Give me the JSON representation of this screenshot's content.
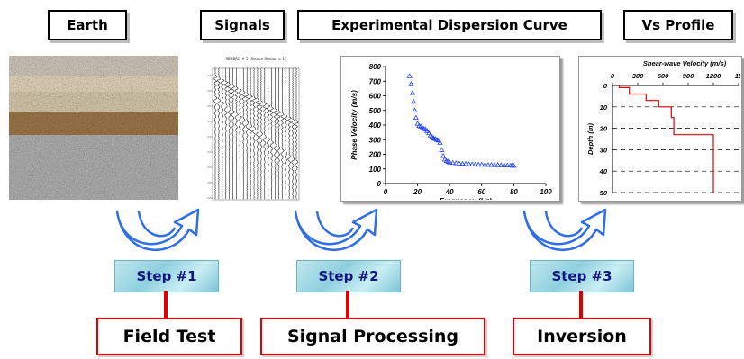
{
  "titles": {
    "earth": "Earth",
    "signals": "Signals",
    "dispersion": "Experimental Dispersion Curve",
    "vs": "Vs Profile"
  },
  "steps": [
    "Step #1",
    "Step #2",
    "Step #3"
  ],
  "processes": [
    "Field Test",
    "Signal Processing",
    "Inversion"
  ],
  "signals_header": "SEGBRD # 5 (Source Station = 1)",
  "colors": {
    "dispersion_marker": "#2040ff",
    "profile_line": "#e00000",
    "connector": "#e00000"
  },
  "chart_data": [
    {
      "type": "scatter",
      "title": "",
      "xlabel": "Frequency (Hz)",
      "ylabel": "Phase Velocity (m/s)",
      "xlim": [
        0,
        100
      ],
      "ylim": [
        0,
        800
      ],
      "xticks": [
        "0",
        "20",
        "40",
        "60",
        "80",
        "100"
      ],
      "yticks": [
        "0",
        "100",
        "200",
        "300",
        "400",
        "500",
        "600",
        "700",
        "800"
      ],
      "marker": "open-triangle",
      "x": [
        15,
        16,
        16.8,
        17.5,
        18.2,
        19,
        20,
        21,
        22,
        23,
        24,
        25,
        26,
        27,
        28,
        29,
        30,
        31,
        32,
        33,
        34,
        35,
        36,
        37,
        38,
        39,
        40,
        42,
        44,
        46,
        48,
        50,
        52,
        54,
        56,
        58,
        60,
        62,
        64,
        66,
        68,
        70,
        72,
        74,
        76,
        78,
        79,
        80
      ],
      "y": [
        735,
        680,
        620,
        560,
        500,
        450,
        410,
        395,
        390,
        380,
        375,
        370,
        360,
        345,
        330,
        320,
        310,
        305,
        300,
        295,
        280,
        230,
        190,
        165,
        155,
        150,
        145,
        142,
        140,
        138,
        136,
        135,
        133,
        132,
        131,
        130,
        130,
        129,
        128,
        128,
        127,
        127,
        126,
        125,
        125,
        124,
        123,
        122
      ]
    },
    {
      "type": "line",
      "title": "Shear-wave Velocity (m/s)",
      "xlabel": "Shear-wave Velocity (m/s)",
      "ylabel": "Depth (m)",
      "xlim": [
        0,
        1500
      ],
      "ylim": [
        0,
        50
      ],
      "xticks": [
        "0",
        "300",
        "600",
        "900",
        "1200",
        "15"
      ],
      "yticks": [
        "0",
        "10",
        "20",
        "30",
        "40",
        "50"
      ],
      "grid": "dashed horizontal",
      "x": [
        80,
        80,
        200,
        200,
        400,
        400,
        550,
        550,
        700,
        700,
        730,
        730,
        1200,
        1200
      ],
      "y": [
        0,
        1,
        1,
        4,
        4,
        7,
        7,
        10,
        10,
        15,
        15,
        23,
        23,
        50
      ]
    }
  ]
}
